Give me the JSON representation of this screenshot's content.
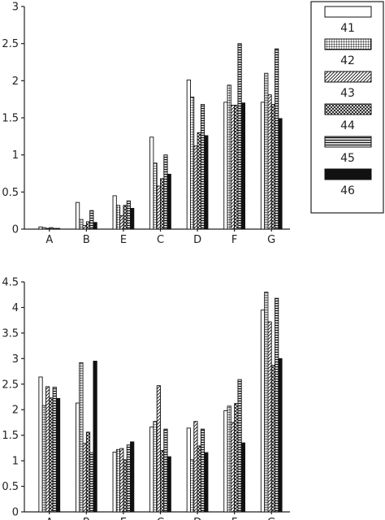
{
  "chart_data": [
    {
      "type": "bar",
      "categories": [
        "A",
        "B",
        "E",
        "C",
        "D",
        "F",
        "G"
      ],
      "ylim": [
        0,
        3
      ],
      "yticks": [
        "0",
        "0.5",
        "1",
        "1.5",
        "2",
        "2.5",
        "3"
      ],
      "legend_position": "right",
      "series": [
        {
          "name": "41",
          "pattern": "open",
          "values": [
            0.03,
            0.36,
            0.45,
            1.24,
            2.01,
            1.71,
            1.71
          ]
        },
        {
          "name": "42",
          "pattern": "grid",
          "values": [
            0.02,
            0.13,
            0.32,
            0.89,
            1.78,
            1.94,
            2.1
          ]
        },
        {
          "name": "43",
          "pattern": "diagonal",
          "values": [
            0.01,
            0.05,
            0.18,
            0.58,
            1.12,
            1.67,
            1.81
          ]
        },
        {
          "name": "44",
          "pattern": "crosshatch",
          "values": [
            0.02,
            0.1,
            0.32,
            0.68,
            1.3,
            1.67,
            1.68
          ]
        },
        {
          "name": "45",
          "pattern": "horizontal",
          "values": [
            0.01,
            0.25,
            0.38,
            1.0,
            1.68,
            2.5,
            2.43
          ]
        },
        {
          "name": "46",
          "pattern": "solid",
          "values": [
            0.01,
            0.09,
            0.28,
            0.74,
            1.26,
            1.7,
            1.49
          ]
        }
      ]
    },
    {
      "type": "bar",
      "categories": [
        "A",
        "B",
        "E",
        "C",
        "D",
        "F",
        "G"
      ],
      "ylim": [
        0,
        4.5
      ],
      "yticks": [
        "0",
        "0.5",
        "1",
        "1.5",
        "2",
        "2.5",
        "3",
        "3.5",
        "4",
        "4.5"
      ],
      "series": [
        {
          "name": "41",
          "pattern": "open",
          "values": [
            2.64,
            2.13,
            1.17,
            1.66,
            1.64,
            1.98,
            3.95
          ]
        },
        {
          "name": "42",
          "pattern": "grid",
          "values": [
            2.08,
            2.92,
            1.22,
            1.77,
            1.02,
            2.07,
            4.3
          ]
        },
        {
          "name": "43",
          "pattern": "diagonal",
          "values": [
            2.45,
            1.34,
            1.24,
            2.47,
            1.77,
            1.75,
            3.72
          ]
        },
        {
          "name": "44",
          "pattern": "crosshatch",
          "values": [
            2.23,
            1.56,
            1.02,
            1.2,
            1.29,
            2.12,
            2.87
          ]
        },
        {
          "name": "45",
          "pattern": "horizontal",
          "values": [
            2.44,
            1.16,
            1.31,
            1.62,
            1.62,
            2.59,
            4.18
          ]
        },
        {
          "name": "46",
          "pattern": "solid",
          "values": [
            2.22,
            2.95,
            1.37,
            1.08,
            1.16,
            1.35,
            3.0
          ]
        }
      ]
    }
  ]
}
